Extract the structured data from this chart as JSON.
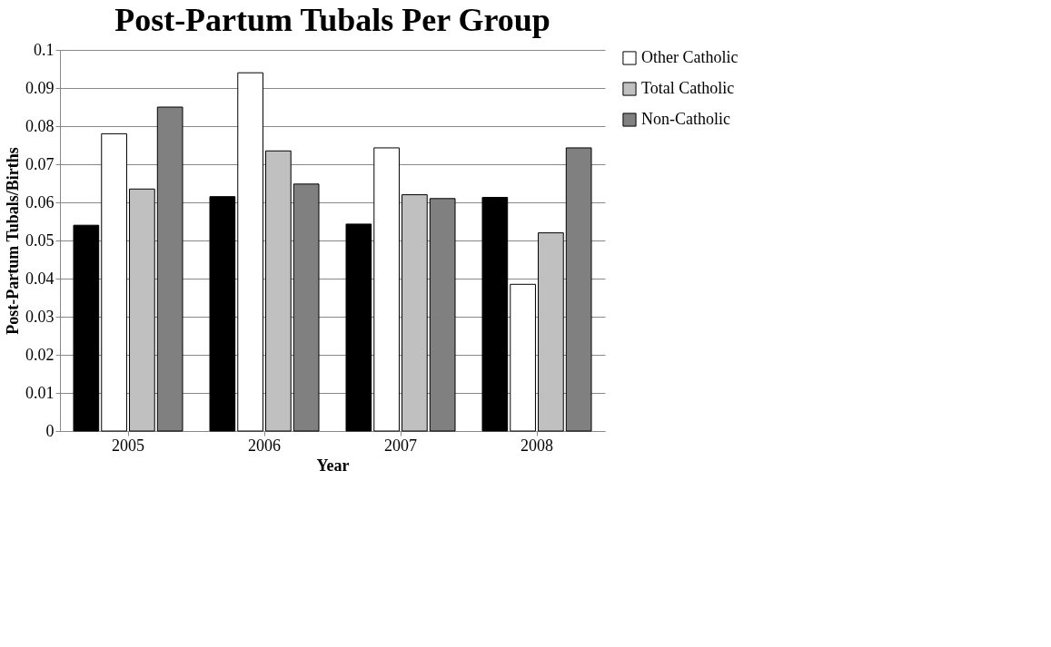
{
  "chart_data": {
    "type": "bar",
    "title": "Post-Partum Tubals Per Group",
    "xlabel": "Year",
    "ylabel": "Post-Partum Tubals/Births",
    "categories": [
      "2005",
      "2006",
      "2007",
      "2008"
    ],
    "series": [
      {
        "color": "#000000",
        "values": [
          0.054,
          0.0615,
          0.0543,
          0.0613
        ]
      },
      {
        "name": "Other Catholic",
        "color": "#ffffff",
        "values": [
          0.078,
          0.094,
          0.0743,
          0.0385
        ]
      },
      {
        "name": "Total Catholic",
        "color": "#c0c0c0",
        "values": [
          0.0635,
          0.0735,
          0.062,
          0.052
        ]
      },
      {
        "name": "Non-Catholic",
        "color": "#808080",
        "values": [
          0.085,
          0.0648,
          0.061,
          0.0743
        ]
      }
    ],
    "ylim": [
      0,
      0.1
    ],
    "yticks": [
      0,
      0.01,
      0.02,
      0.03,
      0.04,
      0.05,
      0.06,
      0.07,
      0.08,
      0.09,
      0.1
    ],
    "grid": "y",
    "legend": "right"
  }
}
